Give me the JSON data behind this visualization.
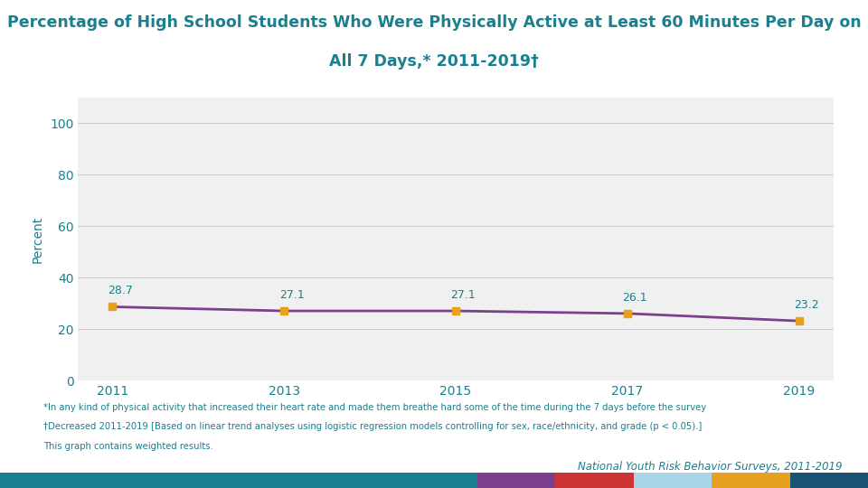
{
  "title_line1": "Percentage of High School Students Who Were Physically Active at Least 60 Minutes Per Day on",
  "title_line2": "All 7 Days,* 2011-2019†",
  "title_color": "#1a7f8e",
  "years": [
    2011,
    2013,
    2015,
    2017,
    2019
  ],
  "values": [
    28.7,
    27.1,
    27.1,
    26.1,
    23.2
  ],
  "line_color": "#7B3F8C",
  "marker_color": "#E8A020",
  "marker_style": "s",
  "ylabel": "Percent",
  "ylabel_color": "#1a7f8e",
  "ylim": [
    0,
    110
  ],
  "yticks": [
    0,
    20,
    40,
    60,
    80,
    100
  ],
  "grid_color": "#cccccc",
  "bg_color": "#ffffff",
  "plot_bg_color": "#f0f0f0",
  "tick_color": "#1a7f8e",
  "footnote1": "*In any kind of physical activity that increased their heart rate and made them breathe hard some of the time during the 7 days before the survey",
  "footnote2": "†Decreased 2011-2019 [Based on linear trend analyses using logistic regression models controlling for sex, race/ethnicity, and grade (p < 0.05).]",
  "footnote3": "This graph contains weighted results.",
  "source": "National Youth Risk Behavior Surveys, 2011-2019",
  "source_color": "#1a7f8e",
  "annotation_color": "#1a7f8e",
  "line_width": 2.0,
  "footer_bar_colors": [
    "#1a7f8e",
    "#7B3F8C",
    "#cc3333",
    "#aad4e8",
    "#E8A020",
    "#1a5276"
  ],
  "footer_bar_widths": [
    0.55,
    0.09,
    0.09,
    0.09,
    0.09,
    0.09
  ]
}
